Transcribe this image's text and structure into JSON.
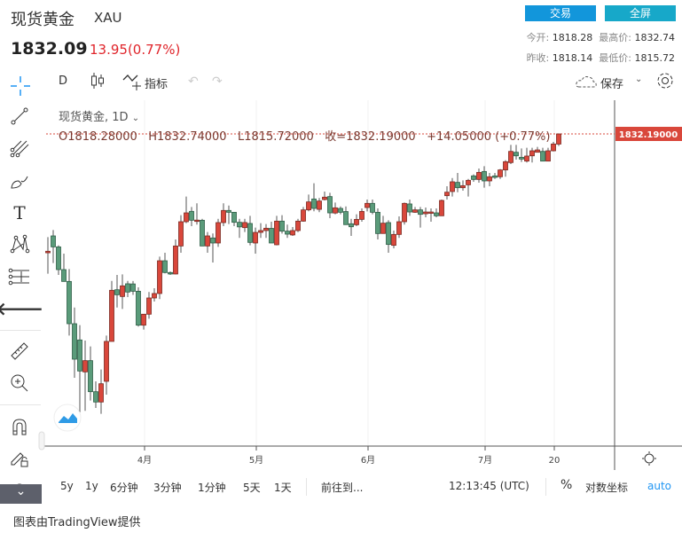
{
  "header": {
    "title": "现货黄金",
    "symbol": "XAU",
    "price": "1832.09",
    "change": "13.95(0.77%)",
    "trade_btn": "交易",
    "fullscreen_btn": "全屏",
    "open_label": "今开:",
    "open": "1818.28",
    "high_label": "最高价:",
    "high": "1832.74",
    "prev_label": "昨收:",
    "prev": "1818.14",
    "low_label": "最低价:",
    "low": "1815.72"
  },
  "toolbar": {
    "interval": "D",
    "indicators": "指标",
    "save": "保存"
  },
  "legend": {
    "name": "现货黄金, 1D",
    "o": "O1818.28000",
    "h": "H1832.74000",
    "l": "L1815.72000",
    "c": "收=1832.19000",
    "chg": "+14.05000 (+0.77%)"
  },
  "last_price_label": "1832.19000",
  "colors": {
    "up": "#d9473b",
    "down": "#5a9b7a",
    "accent": "#1296db"
  },
  "bottombar": {
    "ranges": [
      "5y",
      "1y",
      "6分钟",
      "3分钟",
      "1分钟",
      "5天",
      "1天"
    ],
    "goto": "前往到...",
    "time": "12:13:45 (UTC)",
    "pct": "%",
    "log": "对数坐标",
    "auto": "auto"
  },
  "footer": "图表由TradingView提供",
  "chart_data": {
    "type": "candlestick",
    "xticks": [
      {
        "label": "4月",
        "index": 18
      },
      {
        "label": "5月",
        "index": 39
      },
      {
        "label": "6月",
        "index": 60
      },
      {
        "label": "7月",
        "index": 82
      },
      {
        "label": "20",
        "index": 95
      }
    ],
    "ohlc": [
      [
        1669.6,
        1691,
        1641,
        1671.7
      ],
      [
        1692.7,
        1700.8,
        1655.5,
        1677.7
      ],
      [
        1677.7,
        1679.8,
        1639.3,
        1646.6
      ],
      [
        1646.6,
        1668.4,
        1630.4,
        1630.4
      ],
      [
        1630.4,
        1647.4,
        1556.4,
        1572.6
      ],
      [
        1572.6,
        1594.8,
        1498.6,
        1524.1
      ],
      [
        1550.4,
        1570.6,
        1451.3,
        1507.9
      ],
      [
        1506.7,
        1549.6,
        1453.4,
        1522.1
      ],
      [
        1522.1,
        1541.5,
        1467.5,
        1479.6
      ],
      [
        1479.6,
        1493.8,
        1457.4,
        1465.5
      ],
      [
        1465.5,
        1510,
        1449.3,
        1490.5
      ],
      [
        1493.8,
        1556.4,
        1475.6,
        1548.4
      ],
      [
        1548.4,
        1631.2,
        1548.4,
        1618.3
      ],
      [
        1619.1,
        1639.3,
        1594.8,
        1612.2
      ],
      [
        1609.8,
        1640.1,
        1592.8,
        1624.4
      ],
      [
        1627.2,
        1631.2,
        1609,
        1615.9
      ],
      [
        1627,
        1631,
        1612,
        1617
      ],
      [
        1617,
        1622.4,
        1568.6,
        1570.6
      ],
      [
        1570.6,
        1585.6,
        1564.5,
        1585.6
      ],
      [
        1585.6,
        1615.9,
        1579.5,
        1607.8
      ],
      [
        1607.8,
        1621.1,
        1603,
        1613.9
      ],
      [
        1613.9,
        1664.4,
        1606.2,
        1658.7
      ],
      [
        1658.7,
        1669.6,
        1641.4,
        1642.6
      ],
      [
        1642.6,
        1644,
        1639.3,
        1640.6
      ],
      [
        1640.6,
        1687.8,
        1640.1,
        1678.9
      ],
      [
        1678.9,
        1721,
        1669.6,
        1712.1
      ],
      [
        1712.1,
        1746.5,
        1710.1,
        1724.2
      ],
      [
        1726.3,
        1732.3,
        1706.1,
        1714.1
      ],
      [
        1714.1,
        1737.2,
        1708.1,
        1714.3
      ],
      [
        1714.1,
        1716.1,
        1678.9,
        1678.9
      ],
      [
        1678.9,
        1698,
        1669.6,
        1692.7
      ],
      [
        1689.9,
        1696,
        1656.3,
        1683
      ],
      [
        1683,
        1716.1,
        1677.7,
        1710.9
      ],
      [
        1710.9,
        1737.2,
        1706.1,
        1727.5
      ],
      [
        1727.5,
        1734.3,
        1708.9,
        1725
      ],
      [
        1725,
        1724.2,
        1706.1,
        1711.3
      ],
      [
        1711.3,
        1716.1,
        1689.9,
        1705
      ],
      [
        1704,
        1716.1,
        1698,
        1711
      ],
      [
        1709.7,
        1720.2,
        1679.8,
        1683.8
      ],
      [
        1683,
        1704,
        1668.4,
        1697.5
      ],
      [
        1697.5,
        1710.1,
        1689.9,
        1700
      ],
      [
        1700,
        1708.9,
        1689.9,
        1703.2
      ],
      [
        1703,
        1712.1,
        1683,
        1683
      ],
      [
        1680.6,
        1720.2,
        1679.8,
        1712.9
      ],
      [
        1712.9,
        1721,
        1695.9,
        1699.2
      ],
      [
        1699.2,
        1708.1,
        1689.9,
        1695.1
      ],
      [
        1694,
        1704.8,
        1692.7,
        1700
      ],
      [
        1700,
        1716.1,
        1697.9,
        1712.9
      ],
      [
        1712.9,
        1732.3,
        1712.1,
        1728.3
      ],
      [
        1728.3,
        1749.3,
        1726.3,
        1739.2
      ],
      [
        1743.2,
        1764.7,
        1726.3,
        1730.3
      ],
      [
        1729,
        1744.5,
        1725.1,
        1740.4
      ],
      [
        1742.4,
        1753.4,
        1741.2,
        1745.7
      ],
      [
        1746.5,
        1751.7,
        1717,
        1724.2
      ],
      [
        1724,
        1738.4,
        1722.2,
        1731.1
      ],
      [
        1730.3,
        1733.1,
        1722.2,
        1725
      ],
      [
        1726,
        1733.1,
        1708.1,
        1708.1
      ],
      [
        1709.3,
        1716.1,
        1692.7,
        1705.2
      ],
      [
        1708,
        1722.2,
        1706,
        1715.3
      ],
      [
        1715.3,
        1730.3,
        1712.1,
        1726.2
      ],
      [
        1731.5,
        1742.4,
        1726.2,
        1737.2
      ],
      [
        1737.2,
        1742.4,
        1722.2,
        1725
      ],
      [
        1725,
        1730.3,
        1687.8,
        1695.9
      ],
      [
        1696,
        1720.2,
        1695.9,
        1710.1
      ],
      [
        1710.9,
        1714.1,
        1669.6,
        1681
      ],
      [
        1679.8,
        1700,
        1675.7,
        1694.7
      ],
      [
        1694.7,
        1719.4,
        1689.9,
        1712.1
      ],
      [
        1712.1,
        1738.4,
        1708.1,
        1737.2
      ],
      [
        1736.4,
        1742.4,
        1720.2,
        1725.4
      ],
      [
        1725,
        1732.3,
        1724.2,
        1728.3
      ],
      [
        1728.3,
        1732.3,
        1704,
        1722.2
      ],
      [
        1723,
        1731.5,
        1718.2,
        1725.4
      ],
      [
        1724.2,
        1730.3,
        1712.1,
        1725.4
      ],
      [
        1724.2,
        1730.3,
        1718.2,
        1720.2
      ],
      [
        1720.2,
        1742.4,
        1720.2,
        1741.2
      ],
      [
        1747.7,
        1760.6,
        1742.4,
        1752.5
      ],
      [
        1753.4,
        1771.9,
        1746.5,
        1766.7
      ],
      [
        1765.9,
        1778.8,
        1752.5,
        1758.6
      ],
      [
        1758.6,
        1768.7,
        1754.6,
        1761.4
      ],
      [
        1762.6,
        1770.7,
        1746.5,
        1768.7
      ],
      [
        1774.8,
        1776.8,
        1766.7,
        1769.9
      ],
      [
        1769.9,
        1784.9,
        1765.5,
        1779.6
      ],
      [
        1780.8,
        1788.1,
        1758.6,
        1767.9
      ],
      [
        1767.9,
        1778.8,
        1760.6,
        1773.6
      ],
      [
        1774.8,
        1778.8,
        1770.7,
        1772.7
      ],
      [
        1773.6,
        1784.1,
        1770.7,
        1782.9
      ],
      [
        1782.9,
        1796.2,
        1773.6,
        1794.2
      ],
      [
        1793,
        1817.2,
        1790.9,
        1808.3
      ],
      [
        1807.1,
        1817.2,
        1797,
        1802.2
      ],
      [
        1800.2,
        1812.4,
        1793.8,
        1797.8
      ],
      [
        1795,
        1813.2,
        1793,
        1801.9
      ],
      [
        1802.2,
        1813.2,
        1793,
        1809.1
      ],
      [
        1807.1,
        1814.4,
        1807.1,
        1810.3
      ],
      [
        1808.3,
        1813.2,
        1795,
        1795
      ],
      [
        1795,
        1813.2,
        1795,
        1809.1
      ],
      [
        1809.1,
        1821.3,
        1808.3,
        1818.4
      ],
      [
        1818.28,
        1832.74,
        1815.72,
        1832.19
      ]
    ]
  }
}
